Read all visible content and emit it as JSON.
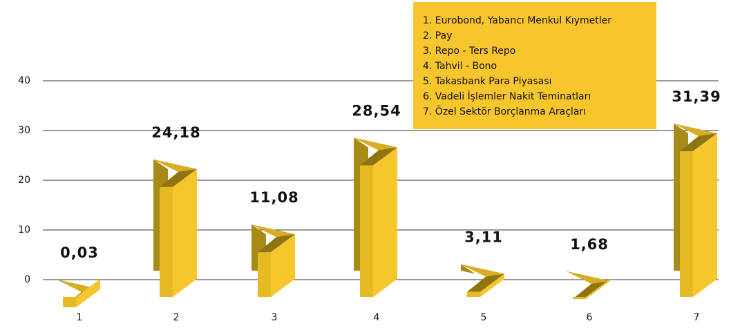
{
  "chart_data": {
    "type": "bar",
    "categories": [
      "1",
      "2",
      "3",
      "4",
      "5",
      "6",
      "7"
    ],
    "values": [
      0.03,
      24.18,
      11.08,
      28.54,
      3.11,
      1.68,
      31.39
    ],
    "value_labels": [
      "0,03",
      "24,18",
      "11,08",
      "28,54",
      "3,11",
      "1,68",
      "31,39"
    ],
    "color": "#f5c72c",
    "ylim": [
      -5,
      45
    ],
    "yticks": [
      0,
      10,
      20,
      30,
      40
    ],
    "grid": true,
    "legend_items": [
      "1. Eurobond, Yabancı Menkul Kıymetler",
      "2. Pay",
      "3. Repo - Ters Repo",
      "4. Tahvil - Bono",
      "5. Takasbank Para Piyasası",
      "6. Vadeli İşlemler Nakit Teminatları",
      "7. Özel Sektör Borçlanma Araçları"
    ],
    "legend_color": "#f7c52c"
  }
}
